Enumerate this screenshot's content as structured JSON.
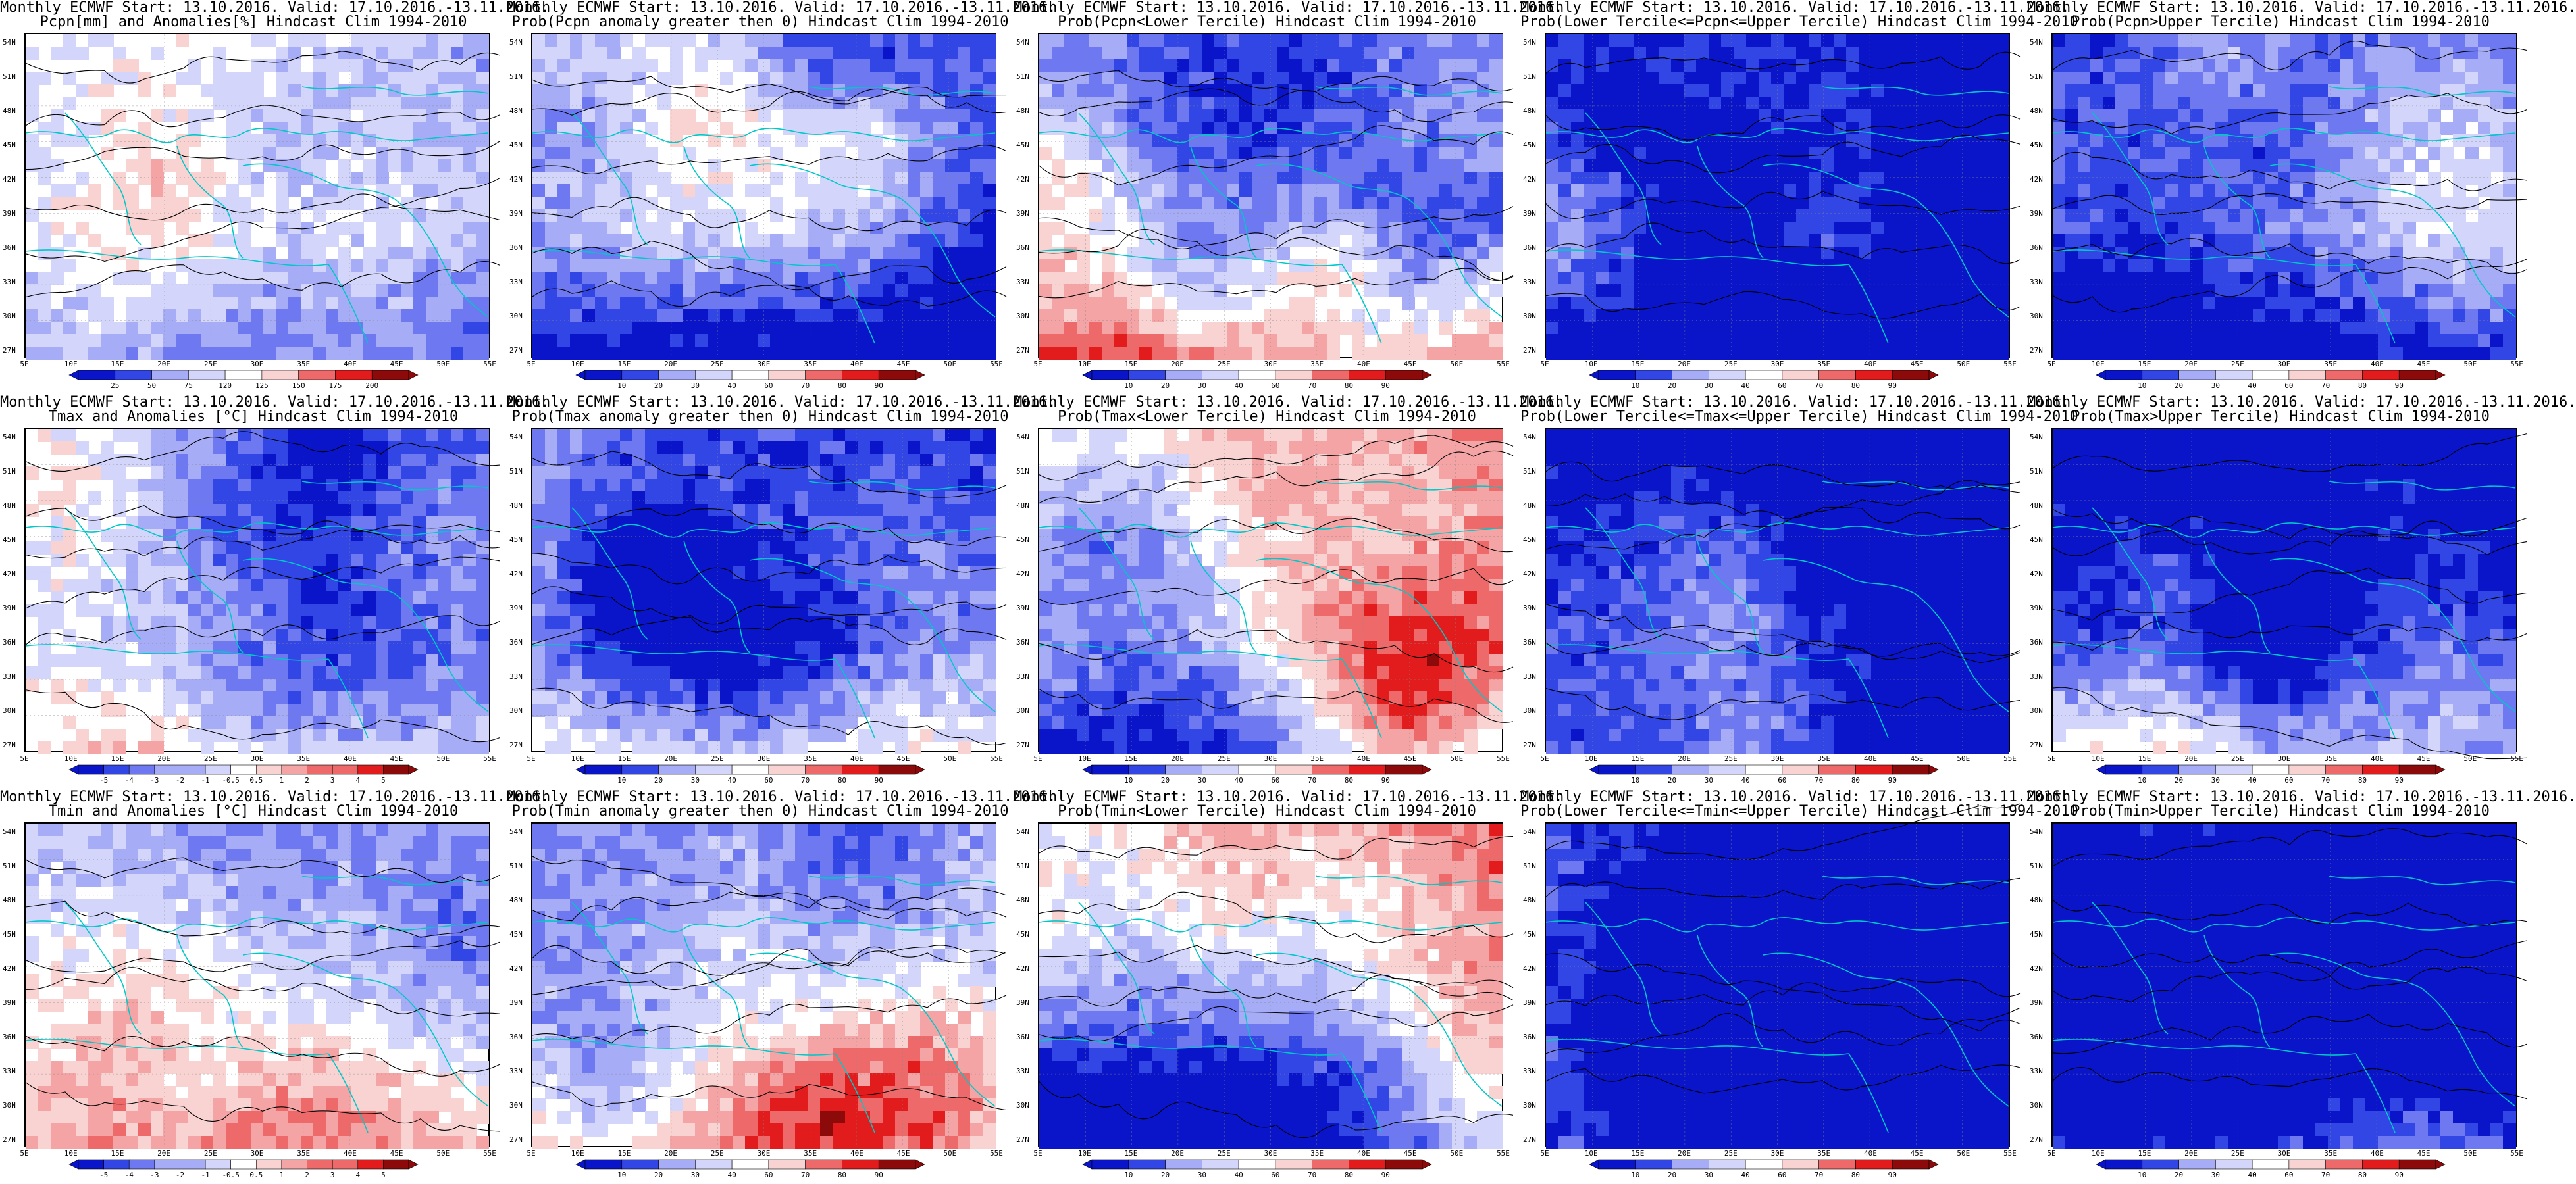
{
  "titles": [
    {
      "line1": "Monthly ECMWF Start: 13.10.2016. Valid: 17.10.2016.-13.11.2016.",
      "line2": "Pcpn[mm] and Anomalies[%] Hindcast Clim 1994-2010"
    },
    {
      "line1": "Monthly ECMWF Start: 13.10.2016. Valid: 17.10.2016.-13.11.2016.",
      "line2": "Prob(Pcpn anomaly greater then 0) Hindcast Clim 1994-2010"
    },
    {
      "line1": "Monthly ECMWF Start: 13.10.2016. Valid: 17.10.2016.-13.11.2016.",
      "line2": "Prob(Pcpn<Lower Tercile) Hindcast Clim 1994-2010"
    },
    {
      "line1": "Monthly ECMWF Start: 13.10.2016. Valid: 17.10.2016.-13.11.2016.",
      "line2": "Prob(Lower Tercile<=Pcpn<=Upper Tercile) Hindcast Clim 1994-2010"
    },
    {
      "line1": "Monthly ECMWF Start: 13.10.2016. Valid: 17.10.2016.-13.11.2016.",
      "line2": "Prob(Pcpn>Upper Tercile) Hindcast Clim 1994-2010"
    },
    {
      "line1": "Monthly ECMWF Start: 13.10.2016. Valid: 17.10.2016.-13.11.2016.",
      "line2": "Tmax and Anomalies [°C] Hindcast Clim 1994-2010"
    },
    {
      "line1": "Monthly ECMWF Start: 13.10.2016. Valid: 17.10.2016.-13.11.2016.",
      "line2": "Prob(Tmax anomaly greater then 0) Hindcast Clim 1994-2010"
    },
    {
      "line1": "Monthly ECMWF Start: 13.10.2016. Valid: 17.10.2016.-13.11.2016.",
      "line2": "Prob(Tmax<Lower Tercile) Hindcast Clim 1994-2010"
    },
    {
      "line1": "Monthly ECMWF Start: 13.10.2016. Valid: 17.10.2016.-13.11.2016.",
      "line2": "Prob(Lower Tercile<=Tmax<=Upper Tercile) Hindcast Clim 1994-2010"
    },
    {
      "line1": "Monthly ECMWF Start: 13.10.2016. Valid: 17.10.2016.-13.11.2016.",
      "line2": "Prob(Tmax>Upper Tercile) Hindcast Clim 1994-2010"
    },
    {
      "line1": "Monthly ECMWF Start: 13.10.2016. Valid: 17.10.2016.-13.11.2016.",
      "line2": "Tmin and Anomalies [°C] Hindcast Clim 1994-2010"
    },
    {
      "line1": "Monthly ECMWF Start: 13.10.2016. Valid: 17.10.2016.-13.11.2016.",
      "line2": "Prob(Tmin anomaly greater then 0) Hindcast Clim 1994-2010"
    },
    {
      "line1": "Monthly ECMWF Start: 13.10.2016. Valid: 17.10.2016.-13.11.2016.",
      "line2": "Prob(Tmin<Lower Tercile) Hindcast Clim 1994-2010"
    },
    {
      "line1": "Monthly ECMWF Start: 13.10.2016. Valid: 17.10.2016.-13.11.2016.",
      "line2": "Prob(Lower Tercile<=Tmin<=Upper Tercile) Hindcast Clim 1994-2010"
    },
    {
      "line1": "Monthly ECMWF Start: 13.10.2016. Valid: 17.10.2016.-13.11.2016.",
      "line2": "Prob(Tmin>Upper Tercile) Hindcast Clim 1994-2010"
    }
  ],
  "lat_labels": [
    "54N",
    "51N",
    "48N",
    "45N",
    "42N",
    "39N",
    "36N",
    "33N",
    "30N",
    "27N"
  ],
  "lon_labels": [
    "5E",
    "10E",
    "15E",
    "20E",
    "25E",
    "30E",
    "35E",
    "40E",
    "45E",
    "50E",
    "55E"
  ],
  "colorbars": {
    "pcpn_anom": [
      "25",
      "50",
      "75",
      "120",
      "125",
      "150",
      "175",
      "200"
    ],
    "temp_anom": [
      "-5",
      "-4",
      "-3",
      "-2",
      "-1",
      "-0.5",
      "0.5",
      "1",
      "2",
      "3",
      "4",
      "5"
    ],
    "prob": [
      "10",
      "20",
      "30",
      "40",
      "60",
      "70",
      "80",
      "90"
    ]
  },
  "colors": {
    "dark_blue": "#0a14c8",
    "blue": "#3246e6",
    "mid_blue": "#6e78f0",
    "light_blue": "#a6acf5",
    "pale_blue": "#d3d6fa",
    "white": "#ffffff",
    "pale_red": "#f9d2d2",
    "light_red": "#f4a4a4",
    "mid_red": "#ee6a6a",
    "red": "#e21c1c",
    "dark_red": "#8c0a0a",
    "coast": "#00c8c8",
    "contour": "#000000"
  }
}
